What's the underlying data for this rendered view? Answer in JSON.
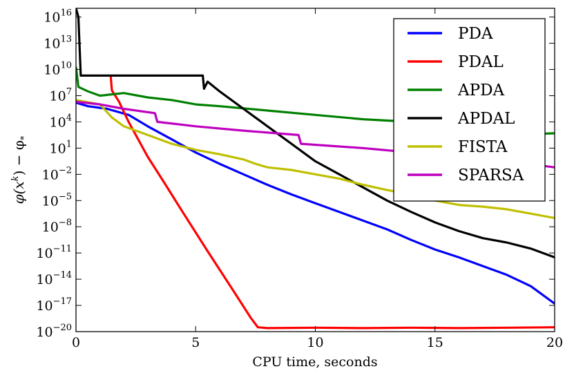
{
  "chart_data": {
    "type": "line",
    "title": "",
    "xlabel": "CPU time, seconds",
    "ylabel_main": "φ(x",
    "ylabel_sup": "k",
    "ylabel_tail": ") − φ",
    "ylabel_sub": "*",
    "xlim": [
      0,
      20
    ],
    "ylim_exp": [
      -20,
      17
    ],
    "yscale": "log",
    "x_ticks": [
      {
        "value": 0,
        "label": "0"
      },
      {
        "value": 5,
        "label": "5"
      },
      {
        "value": 10,
        "label": "10"
      },
      {
        "value": 15,
        "label": "15"
      },
      {
        "value": 20,
        "label": "20"
      }
    ],
    "y_ticks": [
      {
        "exp": 16,
        "base": "10",
        "sup": "16"
      },
      {
        "exp": 13,
        "base": "10",
        "sup": "13"
      },
      {
        "exp": 10,
        "base": "10",
        "sup": "10"
      },
      {
        "exp": 7,
        "base": "10",
        "sup": "7"
      },
      {
        "exp": 4,
        "base": "10",
        "sup": "4"
      },
      {
        "exp": 1,
        "base": "10",
        "sup": "1"
      },
      {
        "exp": -2,
        "base": "10",
        "sup": "−2"
      },
      {
        "exp": -5,
        "base": "10",
        "sup": "−5"
      },
      {
        "exp": -8,
        "base": "10",
        "sup": "−8"
      },
      {
        "exp": -11,
        "base": "10",
        "sup": "−11"
      },
      {
        "exp": -14,
        "base": "10",
        "sup": "−14"
      },
      {
        "exp": -17,
        "base": "10",
        "sup": "−17"
      },
      {
        "exp": -20,
        "base": "10",
        "sup": "−20"
      }
    ],
    "legend_position": "top-right",
    "series": [
      {
        "name": "PDA",
        "color": "#0000ff",
        "points": [
          [
            0,
            6.2
          ],
          [
            0.5,
            5.8
          ],
          [
            1.3,
            5.5
          ],
          [
            2.2,
            4.8
          ],
          [
            3,
            3.5
          ],
          [
            4,
            2.0
          ],
          [
            5,
            0.5
          ],
          [
            6,
            -0.8
          ],
          [
            7,
            -2.0
          ],
          [
            8,
            -3.2
          ],
          [
            9,
            -4.3
          ],
          [
            10,
            -5.3
          ],
          [
            11,
            -6.3
          ],
          [
            12,
            -7.3
          ],
          [
            13,
            -8.3
          ],
          [
            14,
            -9.5
          ],
          [
            15,
            -10.6
          ],
          [
            16,
            -11.5
          ],
          [
            17,
            -12.5
          ],
          [
            18,
            -13.5
          ],
          [
            19,
            -14.8
          ],
          [
            20,
            -16.8
          ]
        ]
      },
      {
        "name": "PDAL",
        "color": "#ff0000",
        "points": [
          [
            1.45,
            9.3
          ],
          [
            1.5,
            7.6
          ],
          [
            1.8,
            6.3
          ],
          [
            2.2,
            4.0
          ],
          [
            3,
            0.0
          ],
          [
            3.7,
            -3.0
          ],
          [
            4.5,
            -6.5
          ],
          [
            5.5,
            -10.8
          ],
          [
            6.5,
            -15.0
          ],
          [
            7.3,
            -18.4
          ],
          [
            7.6,
            -19.5
          ],
          [
            8,
            -19.6
          ],
          [
            10,
            -19.55
          ],
          [
            12,
            -19.6
          ],
          [
            14,
            -19.55
          ],
          [
            16,
            -19.6
          ],
          [
            18,
            -19.55
          ],
          [
            20,
            -19.5
          ]
        ]
      },
      {
        "name": "APDA",
        "color": "#008000",
        "points": [
          [
            0,
            10.3
          ],
          [
            0.1,
            8.0
          ],
          [
            0.5,
            7.5
          ],
          [
            1,
            7.0
          ],
          [
            2,
            7.3
          ],
          [
            3,
            6.8
          ],
          [
            4,
            6.5
          ],
          [
            5,
            6.0
          ],
          [
            6,
            5.8
          ],
          [
            8,
            5.3
          ],
          [
            10,
            4.8
          ],
          [
            12,
            4.3
          ],
          [
            14,
            4.0
          ],
          [
            16,
            3.5
          ],
          [
            18,
            3.0
          ],
          [
            19,
            2.6
          ],
          [
            20,
            2.7
          ]
        ]
      },
      {
        "name": "APDAL",
        "color": "#000000",
        "points": [
          [
            0,
            17
          ],
          [
            0.1,
            16
          ],
          [
            0.2,
            9.3
          ],
          [
            5.3,
            9.3
          ],
          [
            5.35,
            7.8
          ],
          [
            5.5,
            8.6
          ],
          [
            6,
            7.5
          ],
          [
            7,
            5.5
          ],
          [
            8,
            3.5
          ],
          [
            9,
            1.5
          ],
          [
            10,
            -0.5
          ],
          [
            11,
            -2.0
          ],
          [
            12,
            -3.5
          ],
          [
            13,
            -5.0
          ],
          [
            14,
            -6.3
          ],
          [
            15,
            -7.5
          ],
          [
            16,
            -8.5
          ],
          [
            17,
            -9.3
          ],
          [
            18,
            -9.8
          ],
          [
            19,
            -10.5
          ],
          [
            20,
            -11.5
          ]
        ]
      },
      {
        "name": "FISTA",
        "color": "#bfbf00",
        "points": [
          [
            0,
            6.5
          ],
          [
            1,
            6.0
          ],
          [
            1.5,
            4.5
          ],
          [
            2,
            3.5
          ],
          [
            3,
            2.5
          ],
          [
            4,
            1.5
          ],
          [
            5,
            0.8
          ],
          [
            6,
            0.3
          ],
          [
            7,
            -0.3
          ],
          [
            7.5,
            -0.8
          ],
          [
            8,
            -1.2
          ],
          [
            9,
            -1.5
          ],
          [
            10,
            -2.0
          ],
          [
            11,
            -2.5
          ],
          [
            12,
            -3.2
          ],
          [
            13,
            -3.8
          ],
          [
            14,
            -4.3
          ],
          [
            15,
            -5.0
          ],
          [
            16,
            -5.5
          ],
          [
            17,
            -5.7
          ],
          [
            18,
            -6.0
          ],
          [
            19,
            -6.5
          ],
          [
            20,
            -7.0
          ]
        ]
      },
      {
        "name": "SPARSA",
        "color": "#bf00bf",
        "points": [
          [
            0,
            6.3
          ],
          [
            1,
            6.0
          ],
          [
            2,
            5.5
          ],
          [
            3.3,
            5.0
          ],
          [
            3.4,
            4.0
          ],
          [
            5,
            3.5
          ],
          [
            7,
            3.0
          ],
          [
            9.3,
            2.5
          ],
          [
            9.4,
            1.5
          ],
          [
            12,
            1.0
          ],
          [
            14,
            0.5
          ],
          [
            16,
            0.0
          ],
          [
            18,
            -0.5
          ],
          [
            20,
            -1.2
          ]
        ]
      }
    ]
  }
}
